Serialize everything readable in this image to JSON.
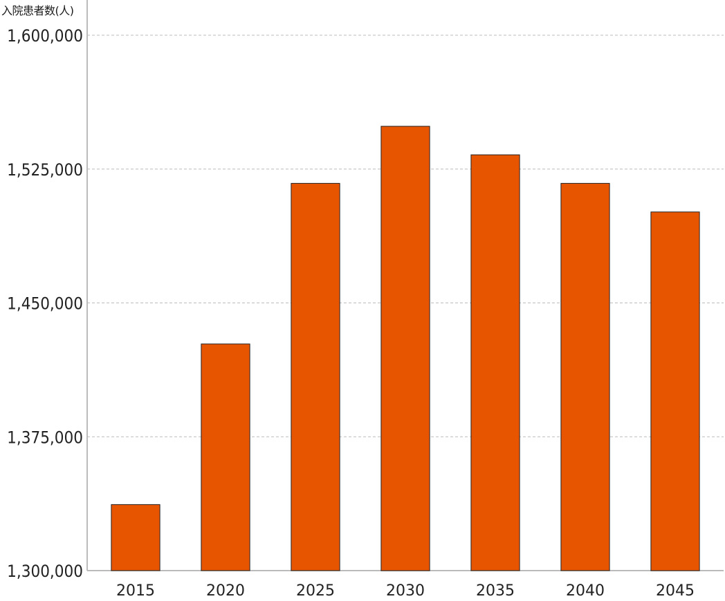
{
  "chart_data": {
    "type": "bar",
    "title": "",
    "xlabel": "",
    "ylabel": "入院患者数(人)",
    "categories": [
      "2015",
      "2020",
      "2025",
      "2030",
      "2035",
      "2040",
      "2045"
    ],
    "values": [
      1337000,
      1427000,
      1517000,
      1549000,
      1533000,
      1517000,
      1501000
    ],
    "ylim": [
      1300000,
      1600000
    ],
    "yticks": [
      1300000,
      1375000,
      1450000,
      1525000,
      1600000
    ],
    "ytick_labels": [
      "1,300,000",
      "1,375,000",
      "1,450,000",
      "1,525,000",
      "1,600,000"
    ],
    "grid": true,
    "legend": "none",
    "bar_color": "#e85500",
    "bar_edge_color": "#222222",
    "grid_color": "#bbbbbb",
    "axis_color": "#bbbbbb"
  }
}
